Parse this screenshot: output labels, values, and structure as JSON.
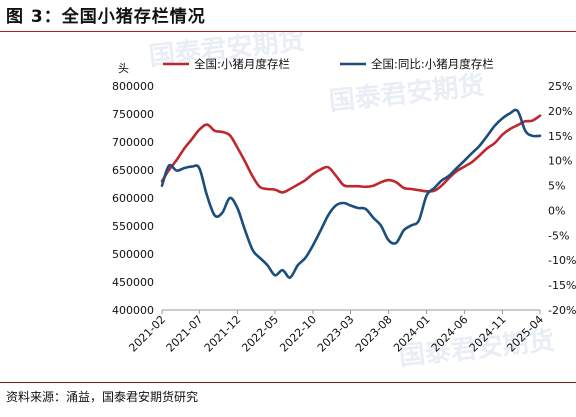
{
  "header": {
    "title": "图 3：全国小猪存栏情况"
  },
  "footer": {
    "source": "资料来源：涌益，国泰君安期货研究"
  },
  "chart_data": {
    "type": "line",
    "unit_left": "头",
    "x_ticks": [
      "2021-02",
      "2021-07",
      "2021-12",
      "2022-05",
      "2022-10",
      "2023-03",
      "2023-08",
      "2024-01",
      "2024-06",
      "2024-11",
      "2025-04"
    ],
    "y_left": {
      "lim": [
        400000,
        800000
      ],
      "ticks": [
        400000,
        450000,
        500000,
        550000,
        600000,
        650000,
        700000,
        750000,
        800000
      ],
      "tick_labels": [
        "400000",
        "450000",
        "500000",
        "550000",
        "600000",
        "650000",
        "700000",
        "750000",
        "800000"
      ]
    },
    "y_right": {
      "lim": [
        -20,
        25
      ],
      "ticks": [
        -20,
        -15,
        -10,
        -5,
        0,
        5,
        10,
        15,
        20,
        25
      ],
      "tick_labels": [
        "-20%",
        "-15%",
        "-10%",
        "-5%",
        "0%",
        "5%",
        "10%",
        "15%",
        "20%",
        "25%"
      ]
    },
    "colors": {
      "stock": "#c0272d",
      "yoy": "#1a4e7c"
    },
    "series": [
      {
        "name": "全国:小猪月度存栏",
        "axis": "left",
        "points": [
          [
            "2021-02",
            630000
          ],
          [
            "2021-03",
            650000
          ],
          [
            "2021-04",
            668000
          ],
          [
            "2021-05",
            688000
          ],
          [
            "2021-06",
            705000
          ],
          [
            "2021-07",
            722000
          ],
          [
            "2021-08",
            731000
          ],
          [
            "2021-09",
            720000
          ],
          [
            "2021-10",
            718000
          ],
          [
            "2021-11",
            712000
          ],
          [
            "2021-12",
            690000
          ],
          [
            "2022-01",
            665000
          ],
          [
            "2022-02",
            638000
          ],
          [
            "2022-03",
            620000
          ],
          [
            "2022-04",
            616000
          ],
          [
            "2022-05",
            615000
          ],
          [
            "2022-06",
            610000
          ],
          [
            "2022-07",
            616000
          ],
          [
            "2022-08",
            624000
          ],
          [
            "2022-09",
            632000
          ],
          [
            "2022-10",
            643000
          ],
          [
            "2022-11",
            651000
          ],
          [
            "2022-12",
            655000
          ],
          [
            "2023-01",
            640000
          ],
          [
            "2023-02",
            623000
          ],
          [
            "2023-03",
            621000
          ],
          [
            "2023-04",
            621000
          ],
          [
            "2023-05",
            620000
          ],
          [
            "2023-06",
            622000
          ],
          [
            "2023-07",
            628000
          ],
          [
            "2023-08",
            632000
          ],
          [
            "2023-09",
            628000
          ],
          [
            "2023-10",
            618000
          ],
          [
            "2023-11",
            616000
          ],
          [
            "2023-12",
            614000
          ],
          [
            "2024-01",
            612000
          ],
          [
            "2024-02",
            613000
          ],
          [
            "2024-03",
            622000
          ],
          [
            "2024-04",
            636000
          ],
          [
            "2024-05",
            648000
          ],
          [
            "2024-06",
            656000
          ],
          [
            "2024-07",
            664000
          ],
          [
            "2024-08",
            676000
          ],
          [
            "2024-09",
            689000
          ],
          [
            "2024-10",
            698000
          ],
          [
            "2024-11",
            713000
          ],
          [
            "2024-12",
            723000
          ],
          [
            "2025-01",
            730000
          ],
          [
            "2025-02",
            737000
          ],
          [
            "2025-03",
            738000
          ],
          [
            "2025-04",
            747000
          ]
        ]
      },
      {
        "name": "全国:同比:小猪月度存栏",
        "axis": "right",
        "points": [
          [
            "2021-02",
            5.0
          ],
          [
            "2021-03",
            9.0
          ],
          [
            "2021-04",
            8.0
          ],
          [
            "2021-05",
            8.5
          ],
          [
            "2021-06",
            8.8
          ],
          [
            "2021-07",
            8.5
          ],
          [
            "2021-08",
            3.0
          ],
          [
            "2021-09",
            -1.0
          ],
          [
            "2021-10",
            -0.5
          ],
          [
            "2021-11",
            2.5
          ],
          [
            "2021-12",
            0.5
          ],
          [
            "2022-01",
            -4.0
          ],
          [
            "2022-02",
            -8.0
          ],
          [
            "2022-03",
            -9.5
          ],
          [
            "2022-04",
            -11.0
          ],
          [
            "2022-05",
            -13.0
          ],
          [
            "2022-06",
            -12.0
          ],
          [
            "2022-07",
            -13.5
          ],
          [
            "2022-08",
            -11.0
          ],
          [
            "2022-09",
            -9.5
          ],
          [
            "2022-10",
            -7.0
          ],
          [
            "2022-11",
            -4.0
          ],
          [
            "2022-12",
            -1.0
          ],
          [
            "2023-01",
            1.0
          ],
          [
            "2023-02",
            1.5
          ],
          [
            "2023-03",
            1.0
          ],
          [
            "2023-04",
            0.5
          ],
          [
            "2023-05",
            0.3
          ],
          [
            "2023-06",
            -1.5
          ],
          [
            "2023-07",
            -3.0
          ],
          [
            "2023-08",
            -6.0
          ],
          [
            "2023-09",
            -6.5
          ],
          [
            "2023-10",
            -4.0
          ],
          [
            "2023-11",
            -3.0
          ],
          [
            "2023-12",
            -2.0
          ],
          [
            "2024-01",
            3.0
          ],
          [
            "2024-02",
            4.5
          ],
          [
            "2024-03",
            6.0
          ],
          [
            "2024-04",
            7.0
          ],
          [
            "2024-05",
            8.5
          ],
          [
            "2024-06",
            10.0
          ],
          [
            "2024-07",
            11.5
          ],
          [
            "2024-08",
            13.0
          ],
          [
            "2024-09",
            15.0
          ],
          [
            "2024-10",
            17.0
          ],
          [
            "2024-11",
            18.5
          ],
          [
            "2024-12",
            19.5
          ],
          [
            "2025-01",
            20.0
          ],
          [
            "2025-02",
            16.0
          ],
          [
            "2025-03",
            15.0
          ],
          [
            "2025-04",
            15.0
          ]
        ]
      }
    ]
  }
}
